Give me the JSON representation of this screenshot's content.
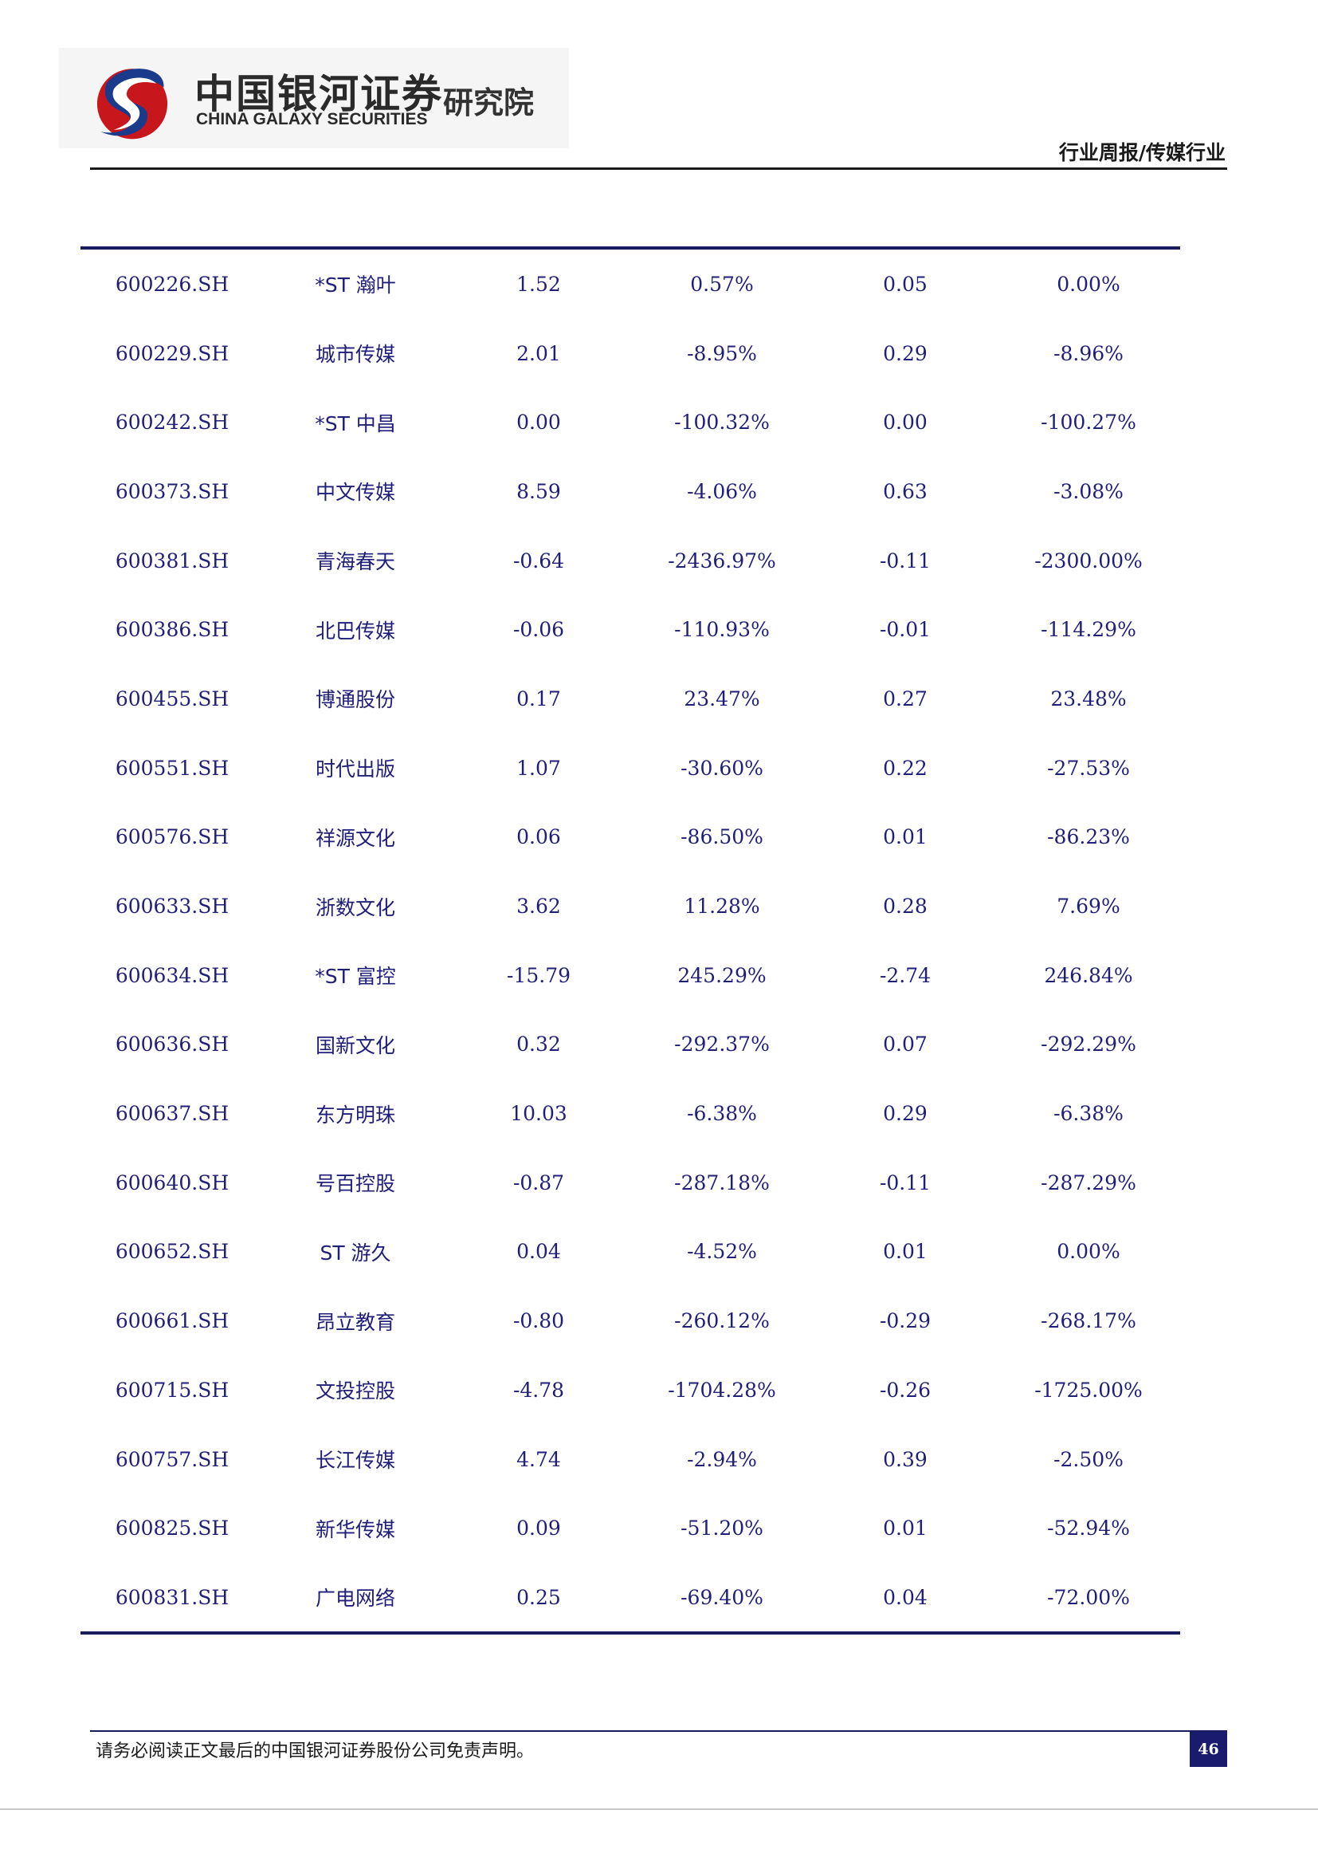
{
  "header": {
    "logo_cn": "中国银河证券",
    "logo_en": "CHINA GALAXY SECURITIES",
    "logo_inst": "研究院",
    "report_type": "行业周报/传媒行业",
    "brand_colors": {
      "red": "#c8161d",
      "navy": "#1a1a6e"
    }
  },
  "table": {
    "rows": [
      {
        "code": "600226.SH",
        "name": "*ST 瀚叶",
        "c1": "1.52",
        "c2": "0.57%",
        "c3": "0.05",
        "c4": "0.00%"
      },
      {
        "code": "600229.SH",
        "name": "城市传媒",
        "c1": "2.01",
        "c2": "-8.95%",
        "c3": "0.29",
        "c4": "-8.96%"
      },
      {
        "code": "600242.SH",
        "name": "*ST 中昌",
        "c1": "0.00",
        "c2": "-100.32%",
        "c3": "0.00",
        "c4": "-100.27%"
      },
      {
        "code": "600373.SH",
        "name": "中文传媒",
        "c1": "8.59",
        "c2": "-4.06%",
        "c3": "0.63",
        "c4": "-3.08%"
      },
      {
        "code": "600381.SH",
        "name": "青海春天",
        "c1": "-0.64",
        "c2": "-2436.97%",
        "c3": "-0.11",
        "c4": "-2300.00%"
      },
      {
        "code": "600386.SH",
        "name": "北巴传媒",
        "c1": "-0.06",
        "c2": "-110.93%",
        "c3": "-0.01",
        "c4": "-114.29%"
      },
      {
        "code": "600455.SH",
        "name": "博通股份",
        "c1": "0.17",
        "c2": "23.47%",
        "c3": "0.27",
        "c4": "23.48%"
      },
      {
        "code": "600551.SH",
        "name": "时代出版",
        "c1": "1.07",
        "c2": "-30.60%",
        "c3": "0.22",
        "c4": "-27.53%"
      },
      {
        "code": "600576.SH",
        "name": "祥源文化",
        "c1": "0.06",
        "c2": "-86.50%",
        "c3": "0.01",
        "c4": "-86.23%"
      },
      {
        "code": "600633.SH",
        "name": "浙数文化",
        "c1": "3.62",
        "c2": "11.28%",
        "c3": "0.28",
        "c4": "7.69%"
      },
      {
        "code": "600634.SH",
        "name": "*ST 富控",
        "c1": "-15.79",
        "c2": "245.29%",
        "c3": "-2.74",
        "c4": "246.84%"
      },
      {
        "code": "600636.SH",
        "name": "国新文化",
        "c1": "0.32",
        "c2": "-292.37%",
        "c3": "0.07",
        "c4": "-292.29%"
      },
      {
        "code": "600637.SH",
        "name": "东方明珠",
        "c1": "10.03",
        "c2": "-6.38%",
        "c3": "0.29",
        "c4": "-6.38%"
      },
      {
        "code": "600640.SH",
        "name": "号百控股",
        "c1": "-0.87",
        "c2": "-287.18%",
        "c3": "-0.11",
        "c4": "-287.29%"
      },
      {
        "code": "600652.SH",
        "name": "ST 游久",
        "c1": "0.04",
        "c2": "-4.52%",
        "c3": "0.01",
        "c4": "0.00%"
      },
      {
        "code": "600661.SH",
        "name": "昂立教育",
        "c1": "-0.80",
        "c2": "-260.12%",
        "c3": "-0.29",
        "c4": "-268.17%"
      },
      {
        "code": "600715.SH",
        "name": "文投控股",
        "c1": "-4.78",
        "c2": "-1704.28%",
        "c3": "-0.26",
        "c4": "-1725.00%"
      },
      {
        "code": "600757.SH",
        "name": "长江传媒",
        "c1": "4.74",
        "c2": "-2.94%",
        "c3": "0.39",
        "c4": "-2.50%"
      },
      {
        "code": "600825.SH",
        "name": "新华传媒",
        "c1": "0.09",
        "c2": "-51.20%",
        "c3": "0.01",
        "c4": "-52.94%"
      },
      {
        "code": "600831.SH",
        "name": "广电网络",
        "c1": "0.25",
        "c2": "-69.40%",
        "c3": "0.04",
        "c4": "-72.00%"
      }
    ]
  },
  "footer": {
    "disclaimer": "请务必阅读正文最后的中国银河证券股份公司免责声明。",
    "page_number": "46"
  }
}
